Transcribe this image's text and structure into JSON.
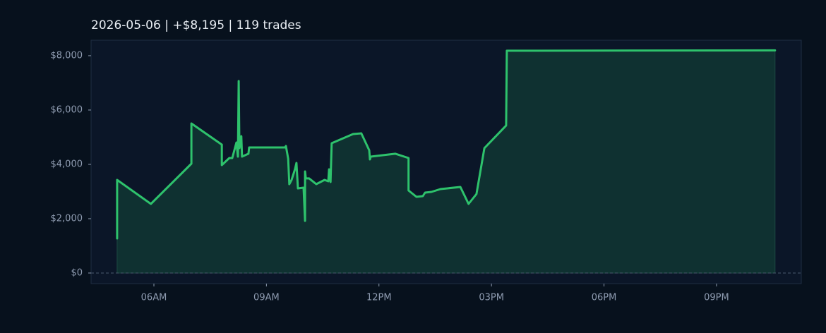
{
  "chart_data": {
    "type": "line",
    "title": "2026-05-06  |  +$8,195  |  119 trades",
    "color": "#2ec26c",
    "fill_color": "#0f3131",
    "x": [
      5.02,
      5.02,
      5.92,
      7.0,
      7.0,
      7.81,
      7.81,
      8.01,
      8.09,
      8.2,
      8.24,
      8.26,
      8.28,
      8.33,
      8.35,
      8.52,
      8.54,
      9.5,
      9.52,
      9.58,
      9.61,
      9.67,
      9.76,
      9.8,
      9.84,
      9.99,
      10.03,
      10.03,
      10.05,
      10.14,
      10.33,
      10.55,
      10.65,
      10.67,
      10.71,
      10.72,
      10.74,
      11.31,
      11.53,
      11.74,
      11.76,
      11.78,
      12.44,
      12.79,
      12.79,
      13.0,
      13.17,
      13.23,
      13.4,
      13.64,
      14.17,
      14.39,
      14.6,
      14.81,
      15.39,
      15.41,
      22.56
    ],
    "values": [
      1273,
      3429,
      2545,
      4026,
      5506,
      4727,
      3974,
      4234,
      4234,
      4805,
      4286,
      7065,
      4597,
      5039,
      4286,
      4390,
      4623,
      4623,
      4675,
      4208,
      3273,
      3429,
      3818,
      4052,
      3117,
      3143,
      1922,
      3740,
      3481,
      3481,
      3273,
      3429,
      3377,
      3818,
      3351,
      3896,
      4779,
      5117,
      5143,
      4519,
      4182,
      4286,
      4390,
      4234,
      3039,
      2805,
      2831,
      2961,
      2987,
      3091,
      3169,
      2545,
      2909,
      4597,
      5429,
      8182,
      8195
    ],
    "xlim": [
      4.325,
      23.26
    ],
    "ylim": [
      -390,
      8570
    ],
    "xticks": [
      {
        "value": 6,
        "label": "06AM"
      },
      {
        "value": 9,
        "label": "09AM"
      },
      {
        "value": 12,
        "label": "12PM"
      },
      {
        "value": 15,
        "label": "03PM"
      },
      {
        "value": 18,
        "label": "06PM"
      },
      {
        "value": 21,
        "label": "09PM"
      }
    ],
    "yticks": [
      {
        "value": 0,
        "label": "$0"
      },
      {
        "value": 2000,
        "label": "$2,000"
      },
      {
        "value": 4000,
        "label": "$4,000"
      },
      {
        "value": 6000,
        "label": "$6,000"
      },
      {
        "value": 8000,
        "label": "$8,000"
      }
    ]
  }
}
